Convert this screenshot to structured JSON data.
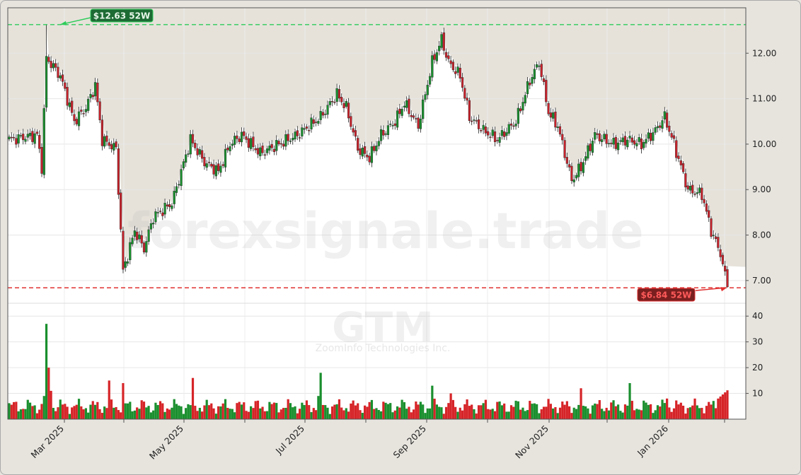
{
  "chart_data": {
    "type": "candlestick",
    "symbol": "GTM",
    "company": "ZoomInfo Technologies Inc.",
    "watermark": "forexsignale.trade",
    "price_axis": {
      "min": 6.5,
      "max": 13.0,
      "ticks": [
        "7.00",
        "8.00",
        "9.00",
        "10.00",
        "11.00",
        "12.00"
      ]
    },
    "volume_axis": {
      "min": 0,
      "max": 40,
      "ticks": [
        "10",
        "20",
        "30",
        "40"
      ]
    },
    "x_labels": [
      "Mar 2025",
      "May 2025",
      "Jul 2025",
      "Sep 2025",
      "Nov 2025",
      "Jan 2026"
    ],
    "high_52w": {
      "label": "$12.63 52W",
      "value": 12.63
    },
    "low_52w": {
      "label": "$6.84 52W",
      "value": 6.84
    },
    "waypoints": [
      [
        0,
        10.1
      ],
      [
        12,
        10.2
      ],
      [
        14,
        9.5
      ],
      [
        16,
        11.9
      ],
      [
        22,
        11.5
      ],
      [
        28,
        10.5
      ],
      [
        33,
        10.8
      ],
      [
        37,
        11.3
      ],
      [
        40,
        10.1
      ],
      [
        46,
        9.9
      ],
      [
        49,
        7.2
      ],
      [
        54,
        8.1
      ],
      [
        58,
        7.7
      ],
      [
        62,
        8.4
      ],
      [
        70,
        8.7
      ],
      [
        78,
        10.1
      ],
      [
        84,
        9.6
      ],
      [
        90,
        9.4
      ],
      [
        95,
        10.0
      ],
      [
        100,
        10.2
      ],
      [
        108,
        9.8
      ],
      [
        116,
        10.0
      ],
      [
        124,
        10.2
      ],
      [
        134,
        10.6
      ],
      [
        141,
        11.1
      ],
      [
        145,
        10.8
      ],
      [
        150,
        9.9
      ],
      [
        155,
        9.7
      ],
      [
        160,
        10.2
      ],
      [
        166,
        10.5
      ],
      [
        170,
        10.9
      ],
      [
        176,
        10.4
      ],
      [
        182,
        11.8
      ],
      [
        186,
        12.3
      ],
      [
        189,
        11.8
      ],
      [
        194,
        11.5
      ],
      [
        198,
        10.6
      ],
      [
        204,
        10.3
      ],
      [
        210,
        10.1
      ],
      [
        218,
        10.5
      ],
      [
        224,
        11.4
      ],
      [
        228,
        11.8
      ],
      [
        232,
        10.7
      ],
      [
        236,
        10.4
      ],
      [
        242,
        9.2
      ],
      [
        246,
        9.5
      ],
      [
        252,
        10.2
      ],
      [
        260,
        10.0
      ],
      [
        266,
        10.1
      ],
      [
        272,
        10.0
      ],
      [
        278,
        10.3
      ],
      [
        282,
        10.6
      ],
      [
        286,
        10.0
      ],
      [
        292,
        9.0
      ],
      [
        298,
        8.9
      ],
      [
        302,
        8.1
      ],
      [
        306,
        7.6
      ],
      [
        309,
        6.84
      ]
    ]
  }
}
